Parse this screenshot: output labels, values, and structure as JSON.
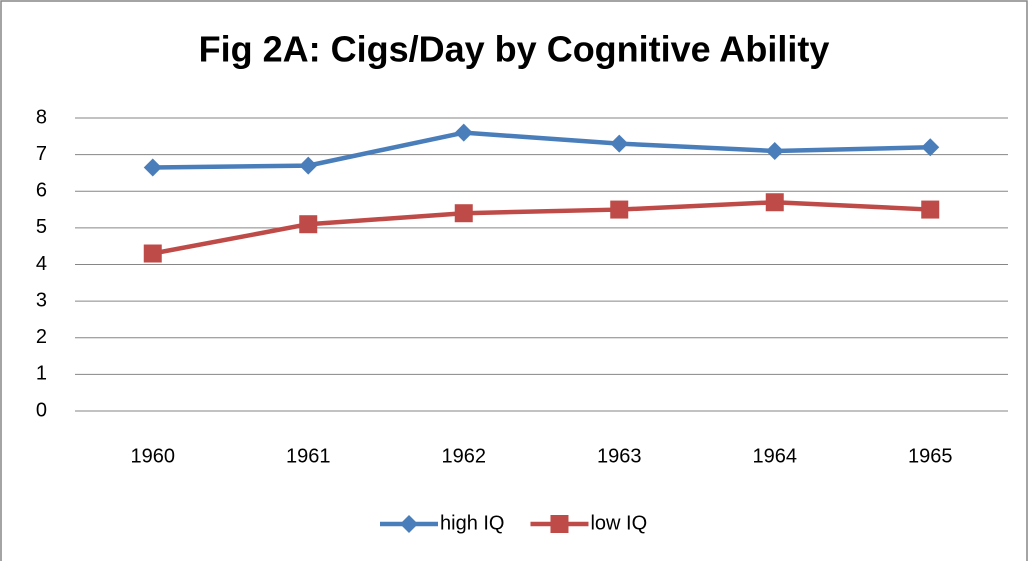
{
  "chart_data": {
    "type": "line",
    "title": "Fig 2A: Cigs/Day by Cognitive Ability",
    "categories": [
      "1960",
      "1961",
      "1962",
      "1963",
      "1964",
      "1965"
    ],
    "series": [
      {
        "name": "high IQ",
        "color": "#4a7ebb",
        "marker": "diamond",
        "values": [
          6.65,
          6.7,
          7.6,
          7.3,
          7.1,
          7.2
        ]
      },
      {
        "name": "low IQ",
        "color": "#be4b48",
        "marker": "square",
        "values": [
          4.3,
          5.1,
          5.4,
          5.5,
          5.7,
          5.5
        ]
      }
    ],
    "ylim": [
      0,
      8
    ],
    "yticks": [
      0,
      1,
      2,
      3,
      4,
      5,
      6,
      7,
      8
    ],
    "grid": true,
    "legend": "bottom"
  }
}
